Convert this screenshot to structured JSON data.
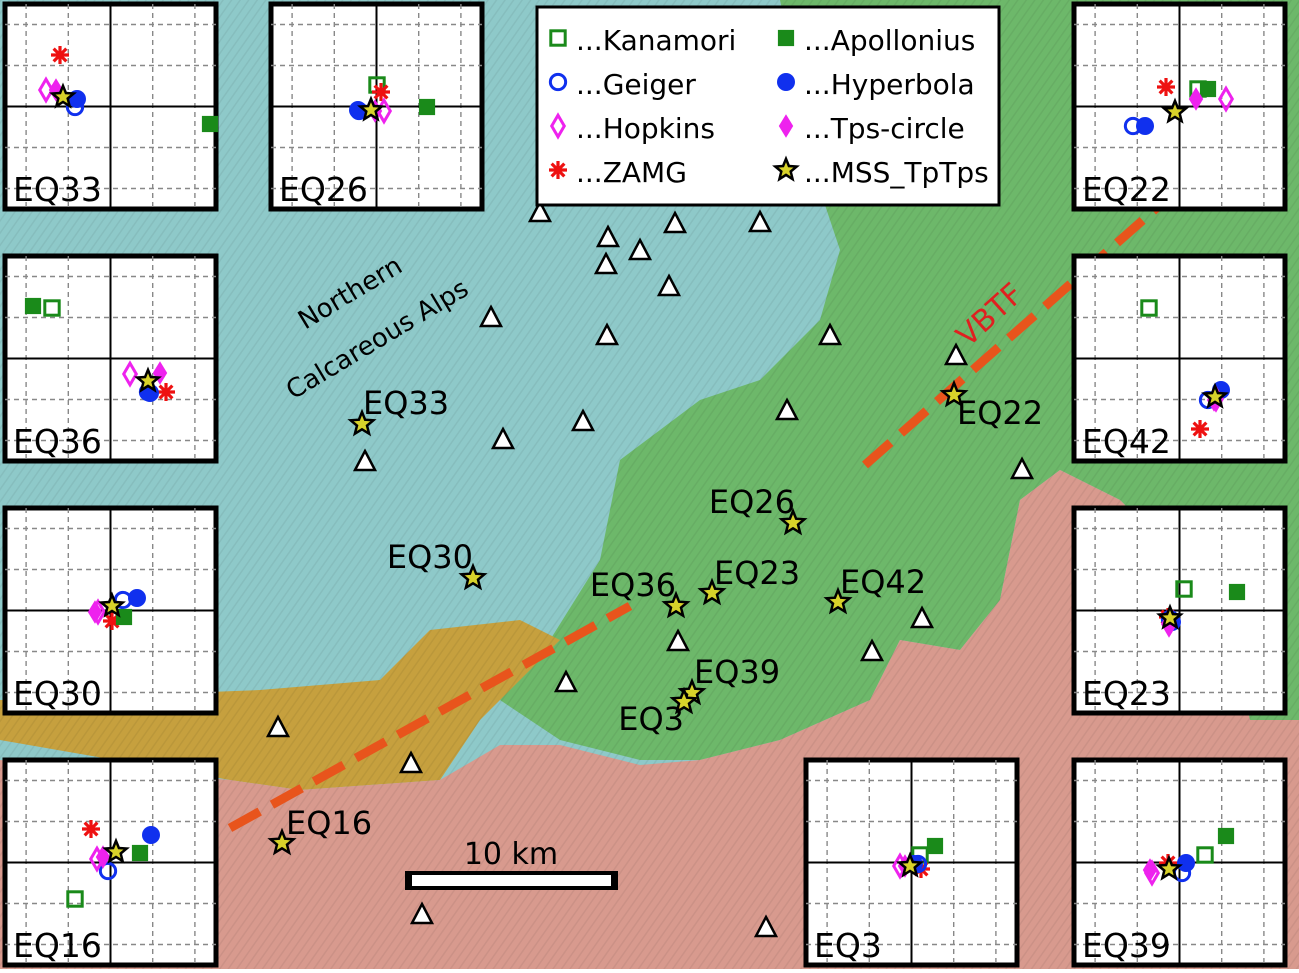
{
  "map": {
    "region_labels": [
      "Northern",
      "Calcareous Alps"
    ],
    "fault_label": "VBTF",
    "scale_label": "10 km",
    "colors": {
      "calcareous": "#8ec9c9",
      "flysch_green": "#6db86a",
      "crystalline": "#d89a8e",
      "molasse": "#c6a03e",
      "fault": "#e8541c",
      "star": "#d8d22a",
      "station_fill": "#ffffff"
    },
    "epicenters": [
      {
        "id": "EQ33",
        "label": "EQ33"
      },
      {
        "id": "EQ22",
        "label": "EQ22"
      },
      {
        "id": "EQ26",
        "label": "EQ26"
      },
      {
        "id": "EQ30",
        "label": "EQ30"
      },
      {
        "id": "EQ36",
        "label": "EQ36"
      },
      {
        "id": "EQ23",
        "label": "EQ23"
      },
      {
        "id": "EQ42",
        "label": "EQ42"
      },
      {
        "id": "EQ39",
        "label": "EQ39"
      },
      {
        "id": "EQ3",
        "label": "EQ3"
      },
      {
        "id": "EQ16",
        "label": "EQ16"
      }
    ]
  },
  "legend": {
    "entries": [
      {
        "label": "...Kanamori",
        "symbol": "open-square",
        "color": "#1a8a1a"
      },
      {
        "label": "...Apollonius",
        "symbol": "filled-square",
        "color": "#1a8a1a"
      },
      {
        "label": "...Geiger",
        "symbol": "open-circle",
        "color": "#1030ee"
      },
      {
        "label": "...Hyperbola",
        "symbol": "filled-circle",
        "color": "#1030ee"
      },
      {
        "label": "...Hopkins",
        "symbol": "open-diamond",
        "color": "#ee22ee"
      },
      {
        "label": "...Tps-circle",
        "symbol": "filled-diamond",
        "color": "#ee22ee"
      },
      {
        "label": "...ZAMG",
        "symbol": "asterisk",
        "color": "#ee1111"
      },
      {
        "label": "...MSS_TpTps",
        "symbol": "star",
        "color": "#d8d22a"
      }
    ]
  },
  "insets": [
    {
      "label": "EQ33"
    },
    {
      "label": "EQ26"
    },
    {
      "label": "EQ22"
    },
    {
      "label": "EQ36"
    },
    {
      "label": "EQ42"
    },
    {
      "label": "EQ30"
    },
    {
      "label": "EQ23"
    },
    {
      "label": "EQ16"
    },
    {
      "label": "EQ3"
    },
    {
      "label": "EQ39"
    }
  ]
}
